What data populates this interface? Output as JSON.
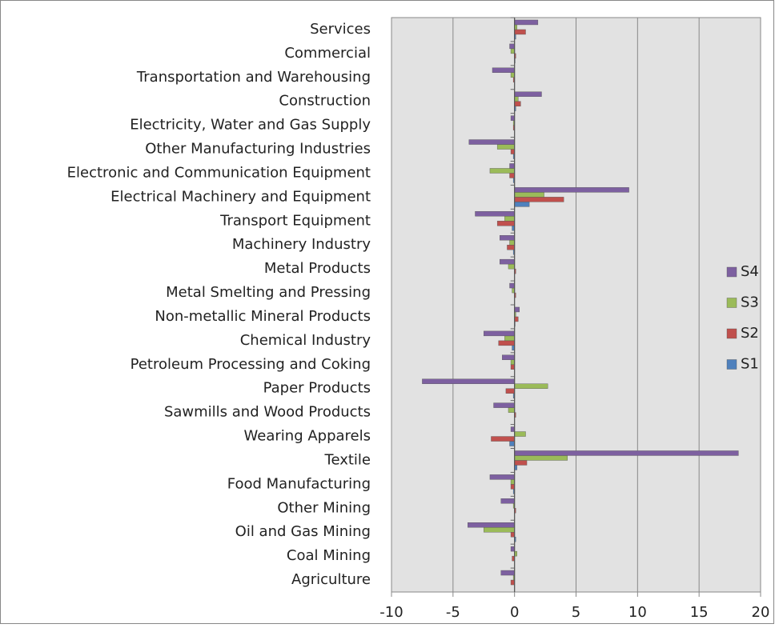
{
  "chart_data": {
    "type": "bar",
    "orientation": "horizontal",
    "categories": [
      "Agriculture",
      "Coal Mining",
      "Oil and Gas Mining",
      "Other Mining",
      "Food Manufacturing",
      "Textile",
      "Wearing Apparels",
      "Sawmills and Wood Products",
      "Paper Products",
      "Petroleum Processing and Coking",
      "Chemical Industry",
      "Non-metallic Mineral Products",
      "Metal Smelting and Pressing",
      "Metal Products",
      "Machinery Industry",
      "Transport Equipment",
      "Electrical Machinery and Equipment",
      "Electronic and Communication Equipment",
      "Other Manufacturing Industries",
      "Electricity, Water and Gas Supply",
      "Construction",
      "Transportation and Warehousing",
      "Commercial",
      "Services"
    ],
    "series": [
      {
        "name": "S1",
        "color": "#4f81bd",
        "values": [
          0,
          0,
          0.1,
          0,
          -0.1,
          0.2,
          -0.4,
          0,
          -0.1,
          0,
          -0.2,
          0.05,
          0,
          0,
          -0.1,
          -0.2,
          1.2,
          -0.1,
          -0.1,
          0,
          0.1,
          0,
          0.05,
          0.1
        ]
      },
      {
        "name": "S2",
        "color": "#c0504d",
        "values": [
          -0.3,
          -0.2,
          -0.3,
          0.1,
          -0.3,
          1.0,
          -1.9,
          0.1,
          -0.7,
          -0.3,
          -1.3,
          0.3,
          0.1,
          0.1,
          -0.6,
          -1.4,
          4.0,
          -0.4,
          -0.3,
          -0.1,
          0.5,
          -0.1,
          0.1,
          0.9
        ]
      },
      {
        "name": "S3",
        "color": "#9bbb59",
        "values": [
          -0.1,
          0.2,
          -2.5,
          -0.1,
          -0.3,
          4.3,
          0.9,
          -0.5,
          2.7,
          -0.3,
          -0.8,
          0.1,
          -0.2,
          -0.5,
          -0.4,
          -0.8,
          2.4,
          -2.0,
          -1.4,
          -0.1,
          0.3,
          -0.3,
          -0.3,
          0.2
        ]
      },
      {
        "name": "S4",
        "color": "#7d60a0",
        "values": [
          -1.1,
          -0.3,
          -3.8,
          -1.1,
          -2.0,
          18.2,
          -0.3,
          -1.7,
          -7.5,
          -1.0,
          -2.5,
          0.4,
          -0.4,
          -1.2,
          -1.2,
          -3.2,
          9.3,
          -0.4,
          -3.7,
          -0.3,
          2.2,
          -1.8,
          -0.4,
          1.9
        ]
      }
    ],
    "xlim": [
      -10,
      20
    ],
    "xticks": [
      -10,
      -5,
      0,
      5,
      10,
      15,
      20
    ],
    "grid": true,
    "legend": "right"
  }
}
